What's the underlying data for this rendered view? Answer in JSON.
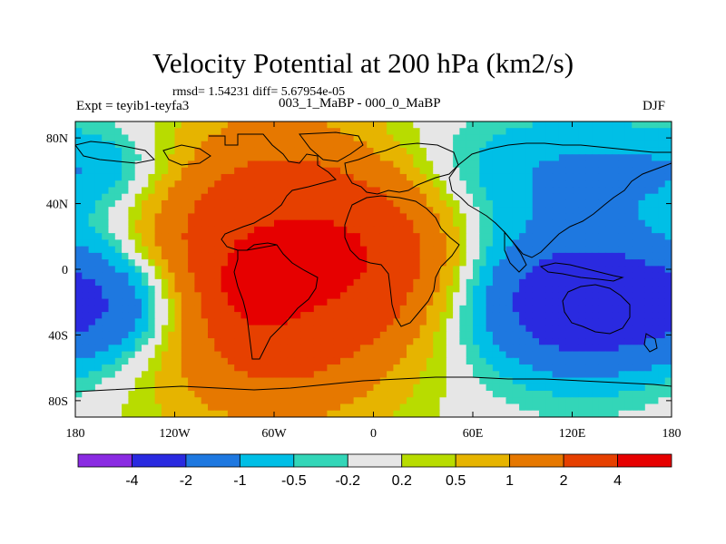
{
  "chart_data": {
    "type": "heatmap",
    "title": "Velocity Potential at 200 hPa (km2/s)",
    "stats_text": "rmsd= 1.54231 diff= 5.67954e-05",
    "left_label": "Expt = teyib1-teyfa3",
    "center_label": "003_1_MaBP - 000_0_MaBP",
    "right_label": "DJF",
    "x_ticks": [
      {
        "value": -180,
        "label": "180"
      },
      {
        "value": -120,
        "label": "120W"
      },
      {
        "value": -60,
        "label": "60W"
      },
      {
        "value": 0,
        "label": "0"
      },
      {
        "value": 60,
        "label": "60E"
      },
      {
        "value": 120,
        "label": "120E"
      },
      {
        "value": 180,
        "label": "180"
      }
    ],
    "y_ticks": [
      {
        "value": 80,
        "label": "80N"
      },
      {
        "value": 40,
        "label": "40N"
      },
      {
        "value": 0,
        "label": "0"
      },
      {
        "value": -40,
        "label": "40S"
      },
      {
        "value": -80,
        "label": "80S"
      }
    ],
    "xlim": [
      -180,
      180
    ],
    "ylim": [
      -90,
      90
    ],
    "colorbar": {
      "levels": [
        "-4",
        "-2",
        "-1",
        "-0.5",
        "-0.2",
        "0.2",
        "0.5",
        "1",
        "2",
        "4"
      ],
      "colors": [
        "#8a2be2",
        "#2a2ae0",
        "#1e78e0",
        "#00bfe6",
        "#33d6b8",
        "#e6e6e6",
        "#b8dc00",
        "#e6b400",
        "#e67800",
        "#e64000",
        "#e60000"
      ]
    },
    "fields": [
      {
        "center_lon": -60,
        "center_lat": 0,
        "peak": 4.2,
        "spread_lon": 55,
        "spread_lat": 55
      },
      {
        "center_lon": -70,
        "center_lat": -10,
        "peak": 2.5,
        "spread_lon": 14,
        "spread_lat": 14
      },
      {
        "center_lon": 0,
        "center_lat": 10,
        "peak": 1.6,
        "spread_lon": 35,
        "spread_lat": 30
      },
      {
        "center_lon": 125,
        "center_lat": -20,
        "peak": -3.2,
        "spread_lon": 45,
        "spread_lat": 30
      },
      {
        "center_lon": -150,
        "center_lat": -20,
        "peak": -2.0,
        "spread_lon": 35,
        "spread_lat": 25
      },
      {
        "center_lon": 110,
        "center_lat": 60,
        "peak": -1.0,
        "spread_lon": 60,
        "spread_lat": 25
      },
      {
        "center_lon": -160,
        "center_lat": 60,
        "peak": -0.8,
        "spread_lon": 35,
        "spread_lat": 20
      },
      {
        "center_lon": 0,
        "center_lat": -80,
        "peak": 0.0,
        "spread_lon": 90,
        "spread_lat": 10
      }
    ]
  }
}
